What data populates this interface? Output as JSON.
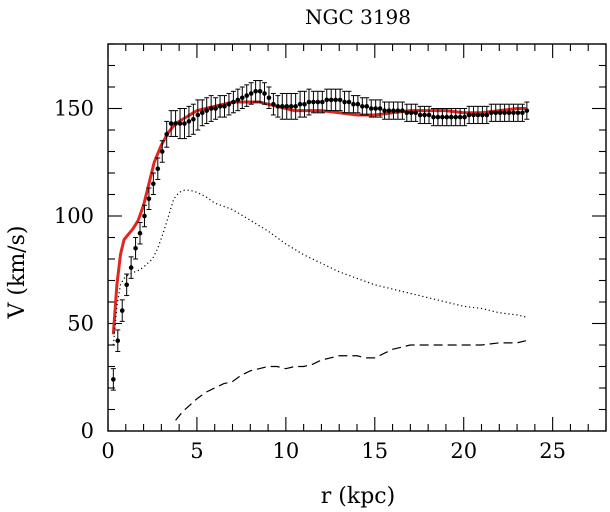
{
  "chart_data": {
    "type": "line",
    "title": "NGC 3198",
    "xlabel": "r (kpc)",
    "ylabel": "V (km/s)",
    "xlim": [
      0,
      28
    ],
    "ylim": [
      0,
      180
    ],
    "x_ticks": [
      0,
      5,
      10,
      15,
      20,
      25
    ],
    "y_ticks": [
      0,
      50,
      100,
      150
    ],
    "x_tick_labels": [
      "0",
      "5",
      "10",
      "15",
      "20",
      "25"
    ],
    "y_tick_labels": [
      "0",
      "50",
      "100",
      "150"
    ],
    "grid": false,
    "legend": "none",
    "observed": {
      "style": "points-with-errorbars",
      "color": "#000000",
      "x": [
        0.3,
        0.55,
        0.8,
        1.05,
        1.3,
        1.55,
        1.8,
        2.05,
        2.3,
        2.55,
        2.8,
        3.05,
        3.3,
        3.55,
        3.8,
        4.05,
        4.3,
        4.55,
        4.8,
        5.05,
        5.3,
        5.55,
        5.8,
        6.05,
        6.3,
        6.55,
        6.8,
        7.05,
        7.3,
        7.55,
        7.8,
        8.05,
        8.3,
        8.55,
        8.8,
        9.05,
        9.3,
        9.55,
        9.8,
        10.05,
        10.3,
        10.55,
        10.8,
        11.05,
        11.3,
        11.55,
        11.8,
        12.05,
        12.3,
        12.55,
        12.8,
        13.05,
        13.3,
        13.55,
        13.8,
        14.05,
        14.3,
        14.55,
        14.8,
        15.05,
        15.3,
        15.55,
        15.8,
        16.05,
        16.3,
        16.55,
        16.8,
        17.05,
        17.3,
        17.55,
        17.8,
        18.05,
        18.3,
        18.55,
        18.8,
        19.05,
        19.3,
        19.55,
        19.8,
        20.05,
        20.3,
        20.55,
        20.8,
        21.05,
        21.3,
        21.55,
        21.8,
        22.05,
        22.3,
        22.55,
        22.8,
        23.05,
        23.3,
        23.55
      ],
      "y": [
        24,
        42,
        56,
        68,
        76,
        85,
        92,
        100,
        108,
        115,
        122,
        130,
        138,
        143,
        143,
        143,
        143,
        144,
        145,
        147,
        148,
        149,
        150,
        150,
        151,
        151,
        152,
        153,
        154,
        155,
        156,
        157,
        158,
        158,
        157,
        155,
        152,
        151,
        151,
        151,
        151,
        151,
        152,
        152,
        153,
        153,
        153,
        153,
        154,
        154,
        154,
        154,
        153,
        153,
        152,
        152,
        151,
        151,
        150,
        150,
        150,
        149,
        149,
        149,
        149,
        149,
        148,
        148,
        148,
        147,
        147,
        147,
        146,
        146,
        146,
        146,
        146,
        146,
        146,
        146,
        147,
        147,
        147,
        147,
        147,
        148,
        148,
        148,
        148,
        148,
        148,
        148,
        148,
        149
      ],
      "errors": [
        5,
        5,
        5,
        5,
        5,
        5,
        5,
        5,
        5,
        5,
        5,
        5,
        6,
        6,
        6,
        7,
        7,
        7,
        7,
        7,
        6,
        6,
        6,
        5,
        5,
        5,
        5,
        5,
        5,
        5,
        5,
        5,
        5,
        5,
        5,
        5,
        5,
        5,
        6,
        6,
        6,
        6,
        6,
        6,
        6,
        5,
        5,
        5,
        5,
        5,
        5,
        5,
        5,
        5,
        4,
        4,
        4,
        4,
        4,
        4,
        4,
        4,
        4,
        4,
        4,
        4,
        4,
        4,
        4,
        4,
        4,
        4,
        4,
        4,
        4,
        4,
        4,
        4,
        4,
        4,
        4,
        4,
        4,
        4,
        4,
        4,
        4,
        4,
        4,
        4,
        4,
        4,
        4,
        4
      ]
    },
    "series": [
      {
        "style": "solid",
        "color": "#e3261e",
        "x": [
          0.3,
          0.5,
          0.7,
          0.9,
          1.1,
          1.4,
          1.7,
          2.0,
          2.3,
          2.6,
          3.0,
          3.4,
          3.8,
          4.2,
          4.6,
          5.0,
          5.5,
          6.0,
          6.5,
          7.0,
          7.5,
          8.0,
          8.5,
          9.0,
          9.5,
          10.0,
          10.5,
          11.0,
          12.0,
          13.0,
          14.0,
          15.0,
          16.0,
          17.0,
          18.0,
          19.0,
          20.0,
          21.0,
          22.0,
          23.0,
          23.5
        ],
        "y": [
          45,
          68,
          82,
          89,
          91,
          94,
          98,
          105,
          115,
          125,
          133,
          139,
          143,
          145,
          147,
          149,
          150,
          151,
          152,
          153,
          153,
          153,
          153,
          152,
          151,
          150,
          149,
          149,
          149,
          148,
          147,
          147,
          148,
          149,
          149,
          149,
          148,
          148,
          149,
          150,
          150
        ]
      },
      {
        "style": "dotted",
        "color": "#000000",
        "x": [
          0.3,
          0.5,
          0.7,
          0.9,
          1.2,
          1.5,
          1.8,
          2.1,
          2.5,
          2.8,
          3.1,
          3.4,
          3.7,
          4.0,
          4.3,
          4.6,
          5.0,
          5.5,
          6.0,
          7.0,
          8.0,
          9.0,
          10.0,
          11.0,
          12.0,
          13.0,
          14.0,
          15.0,
          16.0,
          17.0,
          18.0,
          19.0,
          20.0,
          21.0,
          22.0,
          23.0,
          23.5
        ],
        "y": [
          40,
          58,
          68,
          71,
          73,
          74,
          75,
          77,
          80,
          85,
          92,
          100,
          108,
          111,
          112,
          112,
          111,
          109,
          106,
          103,
          98,
          93,
          87,
          82,
          78,
          74,
          71,
          68,
          66,
          64,
          62,
          60,
          58,
          57,
          55,
          54,
          53
        ]
      },
      {
        "style": "dashed",
        "color": "#000000",
        "x": [
          3.8,
          4.2,
          4.6,
          5.0,
          5.5,
          6.0,
          6.5,
          7.0,
          7.5,
          8.0,
          8.5,
          9.0,
          9.5,
          10.0,
          10.5,
          11.0,
          11.5,
          12.0,
          12.5,
          13.0,
          13.5,
          14.0,
          14.5,
          15.0,
          15.5,
          16.0,
          16.5,
          17.0,
          18.0,
          19.0,
          20.0,
          21.0,
          22.0,
          23.0,
          23.5
        ],
        "y": [
          5,
          9,
          12,
          15,
          18,
          20,
          22,
          23,
          26,
          28,
          29,
          30,
          30,
          29,
          30,
          30,
          31,
          33,
          34,
          35,
          35,
          35,
          34,
          34,
          36,
          38,
          39,
          40,
          40,
          40,
          40,
          40,
          41,
          41,
          42
        ]
      }
    ]
  }
}
